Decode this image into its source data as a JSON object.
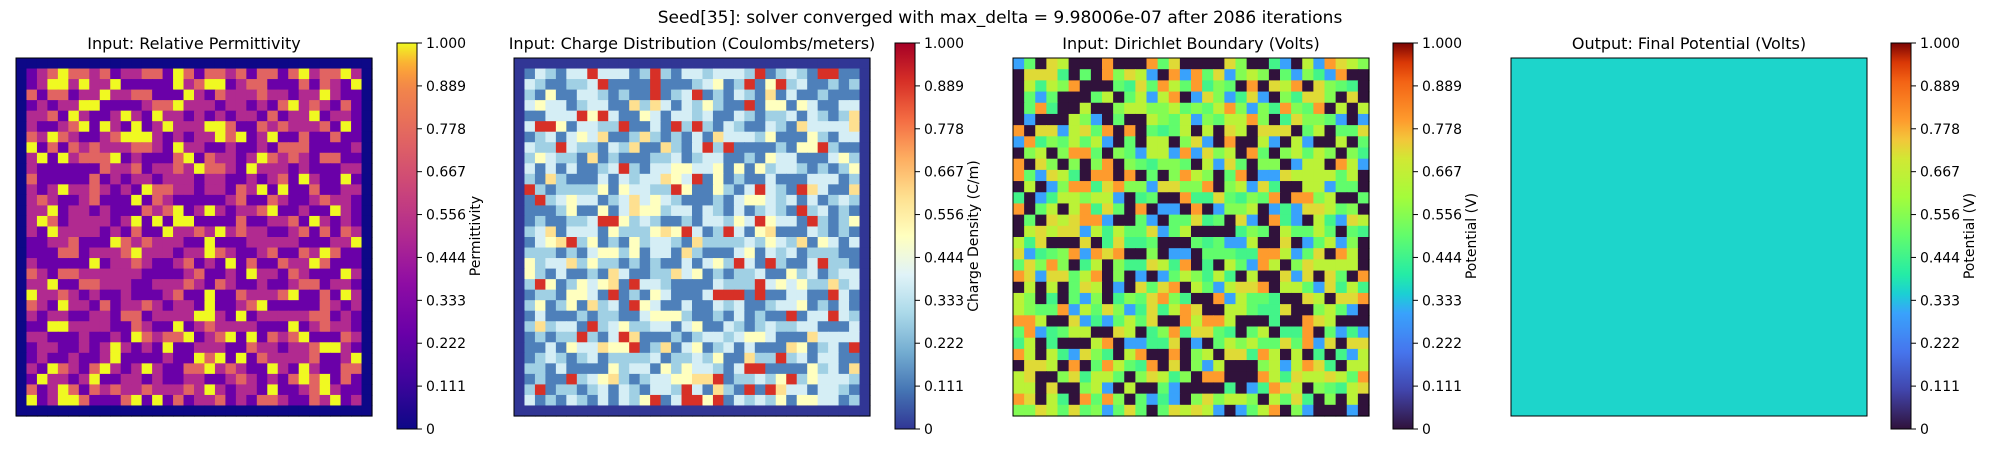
{
  "suptitle": "Seed[35]: solver converged with max_delta = 9.98006e-07 after 2086 iterations",
  "colorbar_ticks": [
    "0",
    "0.111",
    "0.222",
    "0.333",
    "0.444",
    "0.556",
    "0.667",
    "0.778",
    "0.889",
    "1.000"
  ],
  "chart_data": [
    {
      "type": "heatmap",
      "title": "Input: Relative Permittivity",
      "colormap": "plasma",
      "colorbar_label": "Permittivity",
      "clim": [
        0,
        1
      ],
      "grid_size": 34,
      "border_value": 0.0,
      "value_levels": [
        0.25,
        0.5,
        0.75,
        1.0
      ],
      "level_weights": [
        0.35,
        0.35,
        0.16,
        0.14
      ],
      "seed": 35
    },
    {
      "type": "heatmap",
      "title": "Input: Charge Distribution (Coulombs/meters)",
      "colormap": "RdYlBu_r",
      "colorbar_label": "Charge Density (C/m)",
      "clim": [
        0,
        1
      ],
      "grid_size": 34,
      "border_value": 0.0,
      "value_levels": [
        0.12,
        0.28,
        0.38,
        0.5,
        0.6,
        0.9
      ],
      "level_weights": [
        0.34,
        0.24,
        0.2,
        0.1,
        0.05,
        0.07
      ],
      "seed": 71
    },
    {
      "type": "heatmap",
      "title": "Input: Dirichlet Boundary (Volts)",
      "colormap": "turbo",
      "colorbar_label": "Potential (V)",
      "clim": [
        0,
        1
      ],
      "grid_size": 32,
      "border_value": null,
      "value_levels": [
        0.0,
        0.3,
        0.45,
        0.5,
        0.55,
        0.65,
        0.72,
        0.8
      ],
      "level_weights": [
        0.25,
        0.1,
        0.08,
        0.12,
        0.1,
        0.15,
        0.1,
        0.1
      ],
      "seed": 113
    },
    {
      "type": "heatmap",
      "title": "Output: Final Potential (Volts)",
      "colormap": "turbo",
      "colorbar_label": "Potential (V)",
      "clim": [
        0,
        1
      ],
      "grid_size": 1,
      "uniform_value": 0.36
    }
  ]
}
